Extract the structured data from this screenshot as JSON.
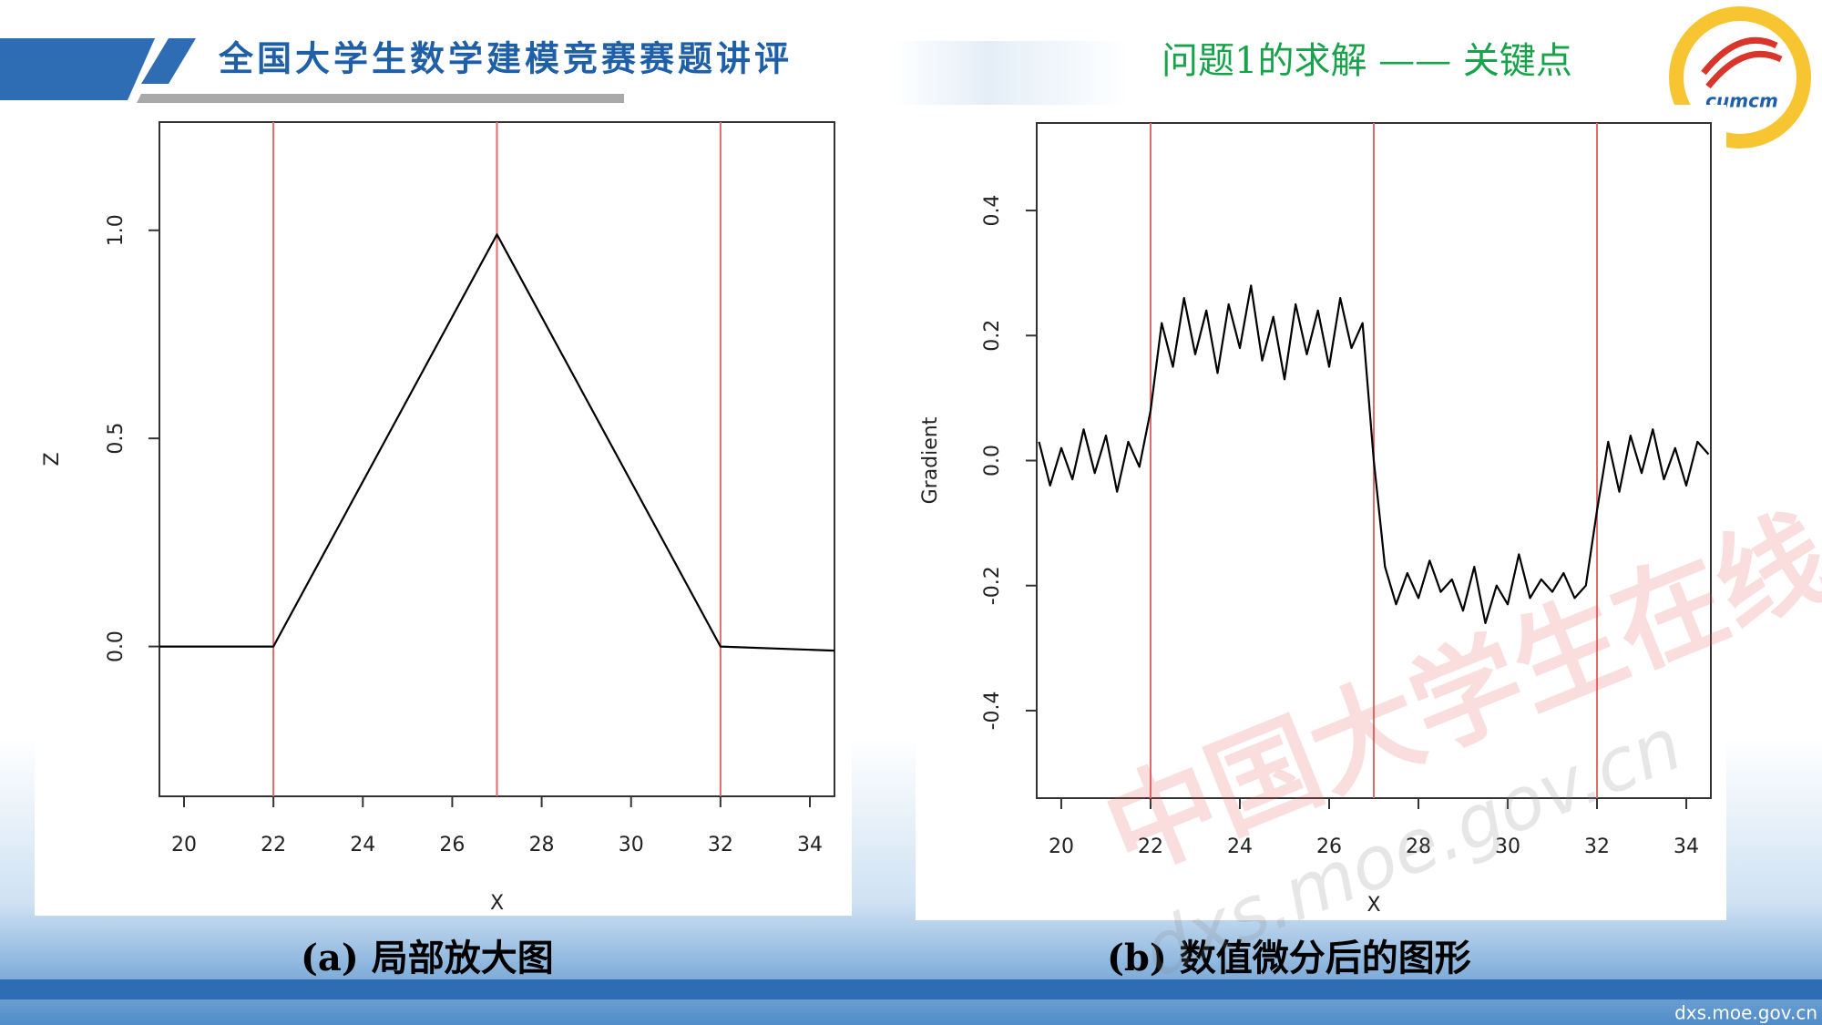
{
  "header": {
    "title": "全国大学生数学建模竞赛赛题讲评",
    "section": "问题1的求解 —— 关键点",
    "logo": "cumcm"
  },
  "watermark": {
    "text": "中国大学生在线",
    "url": "dxs.moe.gov.cn"
  },
  "footer": "dxs.moe.gov.cn",
  "chart_data": [
    {
      "type": "line",
      "caption": "(a)  局部放大图",
      "x_label": "X",
      "y_label": "Z",
      "x": [
        19.45,
        22,
        27,
        32,
        34.55
      ],
      "values": [
        0,
        0,
        0.99,
        0,
        -0.01
      ],
      "color": "#000000",
      "vlines": [
        22,
        27,
        32
      ],
      "vline_color": "#e06a6a",
      "xlim": [
        19.45,
        34.55
      ],
      "ylim": [
        -0.36,
        1.26
      ],
      "xticks": [
        20,
        22,
        24,
        26,
        28,
        30,
        32,
        34
      ],
      "yticks": [
        {
          "value": 0,
          "label": "0.0"
        },
        {
          "value": 0.5,
          "label": "0.5"
        },
        {
          "value": 1,
          "label": "1.0"
        }
      ]
    },
    {
      "type": "line",
      "caption": "(b)  数值微分后的图形",
      "x_label": "X",
      "y_label": "Gradient",
      "x": [
        19.5,
        19.75,
        20,
        20.25,
        20.5,
        20.75,
        21,
        21.25,
        21.5,
        21.75,
        22,
        22.25,
        22.5,
        22.75,
        23,
        23.25,
        23.5,
        23.75,
        24,
        24.25,
        24.5,
        24.75,
        25,
        25.25,
        25.5,
        25.75,
        26,
        26.25,
        26.5,
        26.75,
        27,
        27.25,
        27.5,
        27.75,
        28,
        28.25,
        28.5,
        28.75,
        29,
        29.25,
        29.5,
        29.75,
        30,
        30.25,
        30.5,
        30.75,
        31,
        31.25,
        31.5,
        31.75,
        32,
        32.25,
        32.5,
        32.75,
        33,
        33.25,
        33.5,
        33.75,
        34,
        34.25,
        34.5
      ],
      "values": [
        0.03,
        -0.04,
        0.02,
        -0.03,
        0.05,
        -0.02,
        0.04,
        -0.05,
        0.03,
        -0.01,
        0.08,
        0.22,
        0.15,
        0.26,
        0.17,
        0.24,
        0.14,
        0.25,
        0.18,
        0.28,
        0.16,
        0.23,
        0.13,
        0.25,
        0.17,
        0.24,
        0.15,
        0.26,
        0.18,
        0.22,
        0.0,
        -0.17,
        -0.23,
        -0.18,
        -0.22,
        -0.16,
        -0.21,
        -0.19,
        -0.24,
        -0.17,
        -0.26,
        -0.2,
        -0.23,
        -0.15,
        -0.22,
        -0.19,
        -0.21,
        -0.18,
        -0.22,
        -0.2,
        -0.08,
        0.03,
        -0.05,
        0.04,
        -0.02,
        0.05,
        -0.03,
        0.02,
        -0.04,
        0.03,
        0.01
      ],
      "color": "#000000",
      "vlines": [
        22,
        27,
        32
      ],
      "vline_color": "#e06a6a",
      "xlim": [
        19.45,
        34.55
      ],
      "ylim": [
        -0.54,
        0.54
      ],
      "xticks": [
        20,
        22,
        24,
        26,
        28,
        30,
        32,
        34
      ],
      "yticks": [
        {
          "value": -0.4,
          "label": "-0.4"
        },
        {
          "value": -0.2,
          "label": "-0.2"
        },
        {
          "value": 0,
          "label": "0.0"
        },
        {
          "value": 0.2,
          "label": "0.2"
        },
        {
          "value": 0.4,
          "label": "0.4"
        }
      ]
    }
  ]
}
